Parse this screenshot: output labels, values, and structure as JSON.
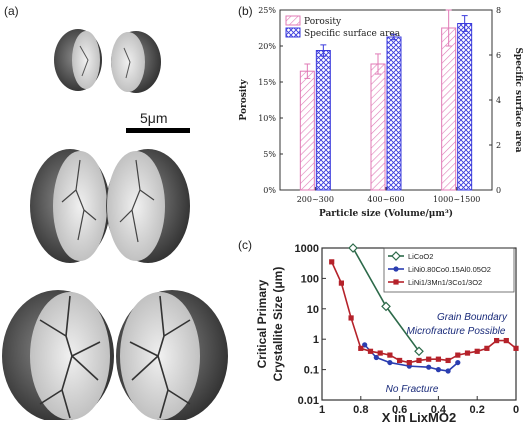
{
  "panel_labels": {
    "a": "(a)",
    "b": "(b)",
    "c": "(c)"
  },
  "panel_a": {
    "scale_bar_label": "5μm"
  },
  "chart_data": [
    {
      "type": "bar",
      "panel": "(b)",
      "categories": [
        "200~300",
        "400~600",
        "1000~1500"
      ],
      "series": [
        {
          "name": "Porosity",
          "axis": "left",
          "values": [
            16.5,
            17.5,
            22.5
          ],
          "errors": [
            1.0,
            1.4,
            2.5
          ],
          "color": "#e07ab6",
          "pattern": "diagonal"
        },
        {
          "name": "Specific surface area",
          "axis": "right",
          "values": [
            6.2,
            6.8,
            7.4
          ],
          "errors": [
            0.25,
            0.12,
            0.35
          ],
          "color": "#3a3adc",
          "pattern": "crosshatch"
        }
      ],
      "xlabel": "Particle size (Volume/μm³)",
      "ylabel": "Porosity",
      "ylabel_right": "Specific surface area",
      "ylim": [
        0,
        25
      ],
      "ylim_right": [
        0,
        8
      ],
      "yticks": [
        "0%",
        "5%",
        "10%",
        "15%",
        "20%",
        "25%"
      ],
      "yticks_right": [
        "0",
        "2",
        "4",
        "6",
        "8"
      ],
      "legend": "top-left"
    },
    {
      "type": "line",
      "panel": "(c)",
      "series": [
        {
          "name": "LiCoO2",
          "color": "#2d6a4a",
          "marker": "diamond-open",
          "x": [
            0.84,
            0.67,
            0.5
          ],
          "y": [
            1000,
            12,
            0.4
          ]
        },
        {
          "name": "LiNi0.80Co0.15Al0.05O2",
          "color": "#2a3db0",
          "marker": "circle",
          "x": [
            0.78,
            0.72,
            0.65,
            0.55,
            0.45,
            0.4,
            0.35,
            0.3
          ],
          "y": [
            0.65,
            0.25,
            0.17,
            0.13,
            0.12,
            0.1,
            0.09,
            0.17
          ]
        },
        {
          "name": "LiNi1/3Mn1/3Co1/3O2",
          "color": "#b5222a",
          "marker": "square",
          "x": [
            0.95,
            0.9,
            0.85,
            0.8,
            0.75,
            0.7,
            0.65,
            0.6,
            0.55,
            0.5,
            0.45,
            0.4,
            0.35,
            0.3,
            0.25,
            0.2,
            0.15,
            0.1,
            0.05,
            0.0
          ],
          "y": [
            350,
            70,
            5,
            0.5,
            0.4,
            0.35,
            0.3,
            0.2,
            0.17,
            0.2,
            0.22,
            0.22,
            0.2,
            0.3,
            0.35,
            0.4,
            0.5,
            0.9,
            0.9,
            0.5
          ]
        }
      ],
      "xlabel": "X in LixMO2",
      "ylabel": "Critical Primary Crystallite Size (μm)",
      "ylabel_lines": [
        "Critical Primary",
        "Crystallite Size (μm)"
      ],
      "xlim": [
        1.0,
        0.0
      ],
      "ylim": [
        0.01,
        1000
      ],
      "yscale": "log",
      "xticks": [
        "1",
        "0.8",
        "0.6",
        "0.4",
        "0.2",
        "0"
      ],
      "yticks": [
        "0.01",
        "0.1",
        "1",
        "10",
        "100",
        "1000"
      ],
      "annotations": [
        "Grain Boundary",
        "Microfracture Possible",
        "No Fracture"
      ],
      "legend": "top-right"
    }
  ]
}
